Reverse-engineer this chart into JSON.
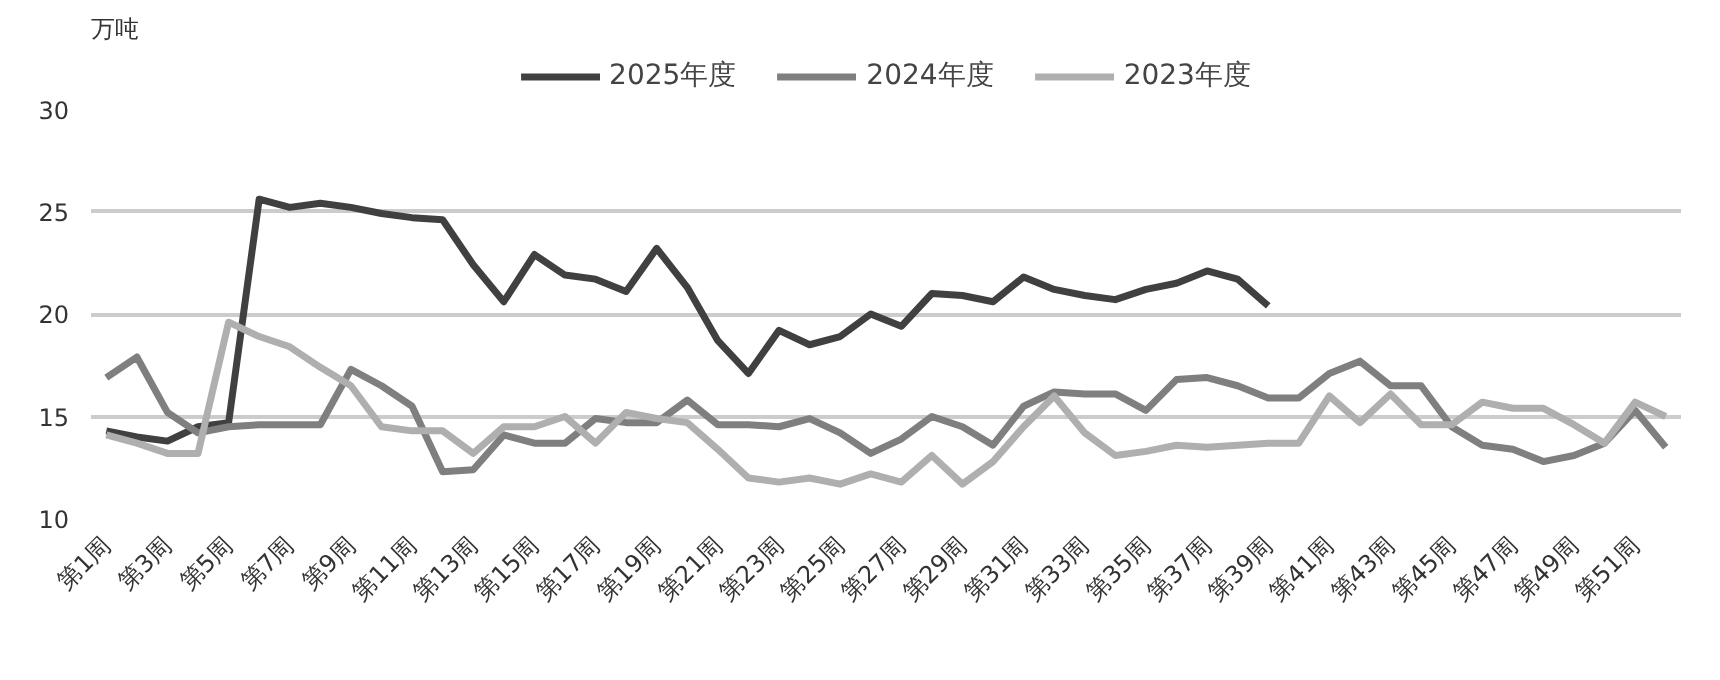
{
  "chart_data": {
    "type": "line",
    "ylabel": "万吨",
    "categories": [
      "第1周",
      null,
      "第3周",
      null,
      "第5周",
      null,
      "第7周",
      null,
      "第9周",
      null,
      "第11周",
      null,
      "第13周",
      null,
      "第15周",
      null,
      "第17周",
      null,
      "第19周",
      null,
      "第21周",
      null,
      "第23周",
      null,
      "第25周",
      null,
      "第27周",
      null,
      "第29周",
      null,
      "第31周",
      null,
      "第33周",
      null,
      "第35周",
      null,
      "第37周",
      null,
      "第39周",
      null,
      "第41周",
      null,
      "第43周",
      null,
      "第45周",
      null,
      "第47周",
      null,
      "第49周",
      null,
      "第51周",
      null
    ],
    "series": [
      {
        "name": "2025年度",
        "color": "#404040",
        "values": [
          14.3,
          14.0,
          13.8,
          14.5,
          14.7,
          25.6,
          25.2,
          25.4,
          25.2,
          24.9,
          24.7,
          24.6,
          22.4,
          20.6,
          22.9,
          21.9,
          21.7,
          21.1,
          23.2,
          21.3,
          18.7,
          17.1,
          19.2,
          18.5,
          18.9,
          20.0,
          19.4,
          21.0,
          20.9,
          20.6,
          21.8,
          21.2,
          20.9,
          20.7,
          21.2,
          21.5,
          22.1,
          21.7,
          20.4,
          null,
          null,
          null,
          null,
          null,
          null,
          null,
          null,
          null,
          null,
          null,
          null,
          null
        ]
      },
      {
        "name": "2024年度",
        "color": "#7f7f7f",
        "values": [
          16.9,
          17.9,
          15.2,
          14.2,
          14.5,
          14.6,
          14.6,
          14.6,
          17.3,
          16.5,
          15.5,
          12.3,
          12.4,
          14.1,
          13.7,
          13.7,
          14.9,
          14.7,
          14.7,
          15.8,
          14.6,
          14.6,
          14.5,
          14.9,
          14.2,
          13.2,
          13.9,
          15.0,
          14.5,
          13.6,
          15.5,
          16.2,
          16.1,
          16.1,
          15.3,
          16.8,
          16.9,
          16.5,
          15.9,
          15.9,
          17.1,
          17.7,
          16.5,
          16.5,
          14.5,
          13.6,
          13.4,
          12.8,
          13.1,
          13.7,
          15.3,
          13.5
        ]
      },
      {
        "name": "2023年度",
        "color": "#afafaf",
        "values": [
          14.1,
          13.7,
          13.2,
          13.2,
          19.6,
          18.9,
          18.4,
          17.4,
          16.5,
          14.5,
          14.3,
          14.3,
          13.2,
          14.5,
          14.5,
          15.0,
          13.7,
          15.2,
          14.9,
          14.7,
          13.4,
          12.0,
          11.8,
          12.0,
          11.7,
          12.2,
          11.8,
          13.1,
          11.7,
          12.8,
          14.5,
          16.0,
          14.2,
          13.1,
          13.3,
          13.6,
          13.5,
          13.6,
          13.7,
          13.7,
          16.0,
          14.7,
          16.1,
          14.6,
          14.6,
          15.7,
          15.4,
          15.4,
          14.6,
          13.7,
          15.7,
          15.0
        ]
      }
    ],
    "ylim": [
      10,
      30
    ],
    "yticks": [
      10,
      15,
      20,
      25,
      30
    ],
    "grid": "y",
    "legend": "top",
    "marker": "none",
    "line_style": "solid"
  }
}
